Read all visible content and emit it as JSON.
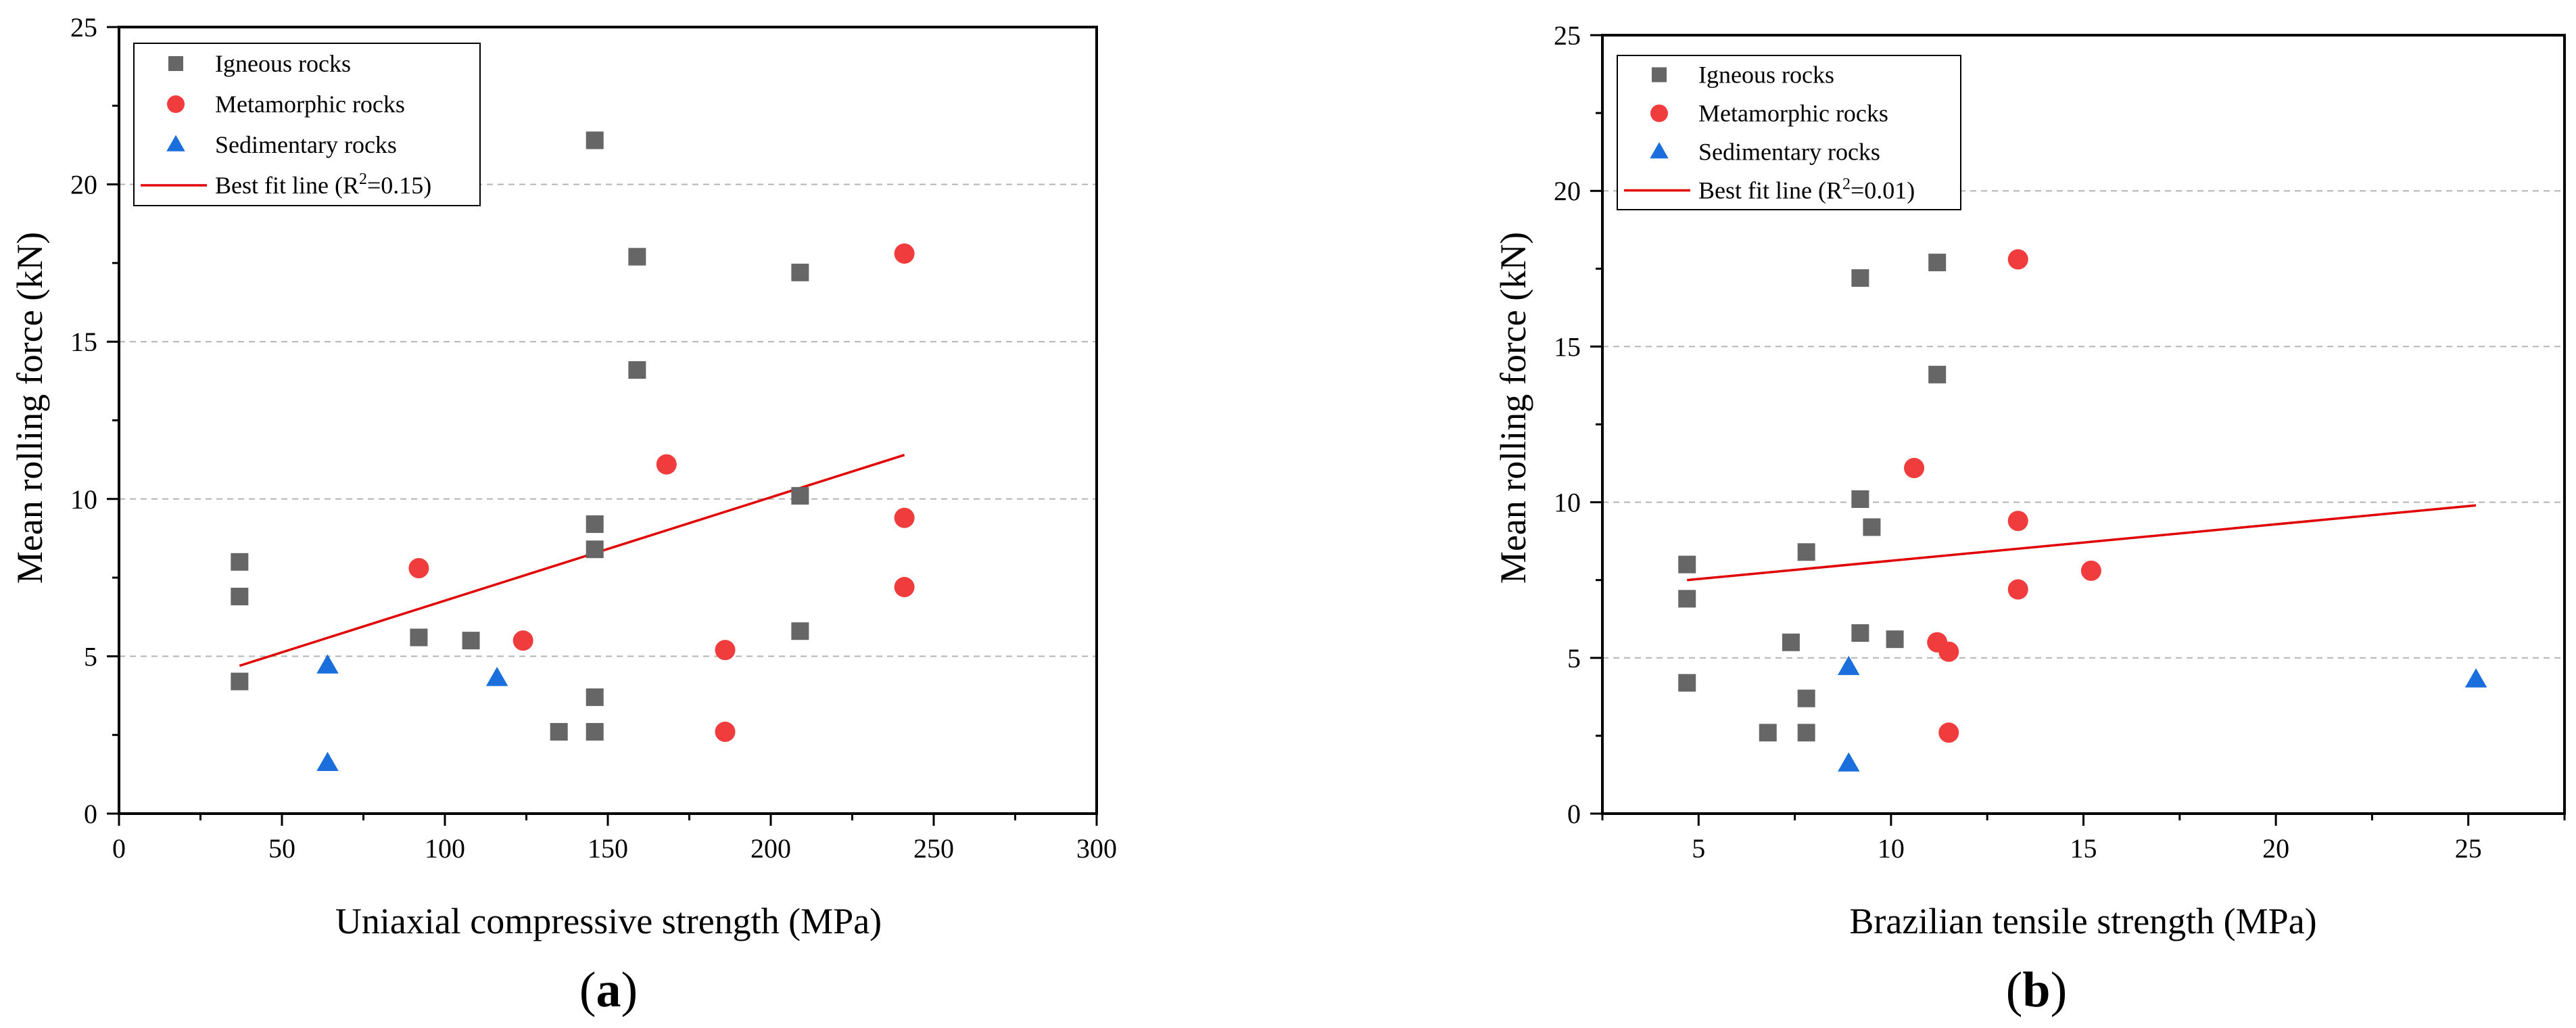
{
  "chart_data": [
    {
      "type": "scatter",
      "panel_label": "a",
      "title": "",
      "xlabel": "Uniaxial compressive strength (MPa)",
      "ylabel": "Mean rolling force (kN)",
      "xlim": [
        0,
        300
      ],
      "ylim": [
        0,
        25
      ],
      "xticks": [
        0,
        50,
        100,
        150,
        200,
        250,
        300
      ],
      "yticks": [
        0,
        5,
        10,
        15,
        20,
        25
      ],
      "grid": "horizontal dashed at 5, 10, 15, 20",
      "legend_position": "top-left",
      "series": [
        {
          "name": "Igneous rocks",
          "marker": "square",
          "color": "#666666",
          "points": [
            [
              37,
              8.0
            ],
            [
              37,
              6.9
            ],
            [
              37,
              4.2
            ],
            [
              92,
              5.6
            ],
            [
              108,
              5.5
            ],
            [
              135,
              2.6
            ],
            [
              146,
              21.4
            ],
            [
              146,
              9.2
            ],
            [
              146,
              8.4
            ],
            [
              146,
              3.7
            ],
            [
              146,
              2.6
            ],
            [
              159,
              17.7
            ],
            [
              159,
              14.1
            ],
            [
              209,
              17.2
            ],
            [
              209,
              10.1
            ],
            [
              209,
              5.8
            ]
          ]
        },
        {
          "name": "Metamorphic rocks",
          "marker": "circle",
          "color": "#f03c3c",
          "points": [
            [
              92,
              7.8
            ],
            [
              124,
              5.5
            ],
            [
              168,
              11.1
            ],
            [
              186,
              5.2
            ],
            [
              186,
              2.6
            ],
            [
              241,
              17.8
            ],
            [
              241,
              9.4
            ],
            [
              241,
              7.2
            ]
          ]
        },
        {
          "name": "Sedimentary rocks",
          "marker": "triangle",
          "color": "#1a6fdc",
          "points": [
            [
              64,
              4.7
            ],
            [
              64,
              1.6
            ],
            [
              116,
              4.3
            ]
          ]
        }
      ],
      "fit": {
        "name_prefix": "Best fit line (R",
        "superscript": "2",
        "name_suffix": "=0.15)",
        "color": "#e00000",
        "x": [
          37,
          241
        ],
        "y": [
          4.7,
          11.4
        ]
      }
    },
    {
      "type": "scatter",
      "panel_label": "b",
      "title": "",
      "xlabel": "Brazilian tensile strength (MPa)",
      "ylabel": "Mean rolling force (kN)",
      "xlim": [
        2.5,
        27.5
      ],
      "ylim": [
        0,
        25
      ],
      "xticks": [
        5,
        10,
        15,
        20,
        25
      ],
      "yticks": [
        0,
        5,
        10,
        15,
        20,
        25
      ],
      "grid": "horizontal dashed at 5, 10, 15, 20",
      "legend_position": "top-left",
      "series": [
        {
          "name": "Igneous rocks",
          "marker": "square",
          "color": "#666666",
          "points": [
            [
              4.7,
              8.0
            ],
            [
              4.7,
              6.9
            ],
            [
              4.7,
              4.2
            ],
            [
              6.8,
              2.6
            ],
            [
              7.4,
              5.5
            ],
            [
              7.8,
              8.4
            ],
            [
              7.8,
              3.7
            ],
            [
              7.8,
              2.6
            ],
            [
              9.2,
              17.2
            ],
            [
              9.2,
              10.1
            ],
            [
              9.2,
              5.8
            ],
            [
              9.5,
              9.2
            ],
            [
              10.1,
              5.6
            ],
            [
              11.2,
              17.7
            ],
            [
              11.2,
              14.1
            ]
          ]
        },
        {
          "name": "Metamorphic rocks",
          "marker": "circle",
          "color": "#f03c3c",
          "points": [
            [
              10.6,
              11.1
            ],
            [
              11.2,
              5.5
            ],
            [
              11.5,
              5.2
            ],
            [
              11.5,
              2.6
            ],
            [
              13.3,
              17.8
            ],
            [
              13.3,
              9.4
            ],
            [
              13.3,
              7.2
            ],
            [
              15.2,
              7.8
            ]
          ]
        },
        {
          "name": "Sedimentary rocks",
          "marker": "triangle",
          "color": "#1a6fdc",
          "points": [
            [
              8.9,
              4.7
            ],
            [
              8.9,
              1.6
            ],
            [
              25.2,
              4.3
            ]
          ]
        }
      ],
      "fit": {
        "name_prefix": "Best fit line (R",
        "superscript": "2",
        "name_suffix": "=0.01)",
        "color": "#e00000",
        "x": [
          4.7,
          25.2
        ],
        "y": [
          7.5,
          9.9
        ]
      }
    }
  ]
}
